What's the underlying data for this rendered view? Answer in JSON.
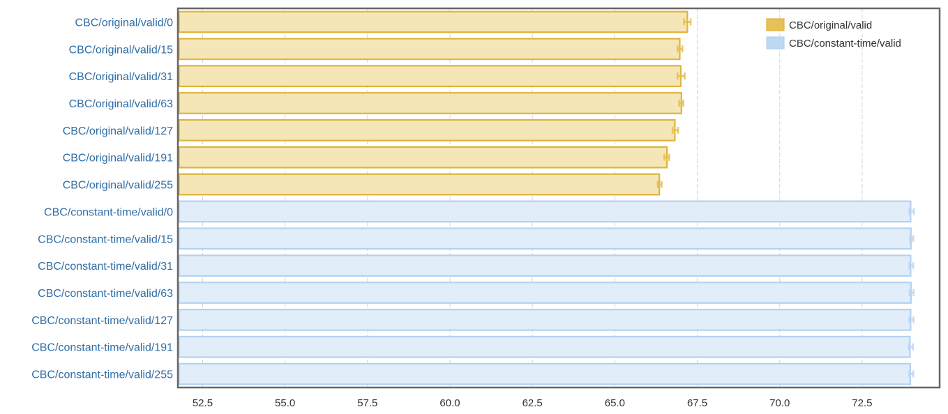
{
  "chart_data": {
    "type": "bar",
    "orientation": "horizontal",
    "categories": [
      "CBC/original/valid/0",
      "CBC/original/valid/15",
      "CBC/original/valid/31",
      "CBC/original/valid/63",
      "CBC/original/valid/127",
      "CBC/original/valid/191",
      "CBC/original/valid/255",
      "CBC/constant-time/valid/0",
      "CBC/constant-time/valid/15",
      "CBC/constant-time/valid/31",
      "CBC/constant-time/valid/63",
      "CBC/constant-time/valid/127",
      "CBC/constant-time/valid/191",
      "CBC/constant-time/valid/255"
    ],
    "series": [
      {
        "name": "CBC/original/valid",
        "color": "#e6c157",
        "fill": "#f5e6b8",
        "stroke": "#e0b43a",
        "values": [
          67.2,
          66.97,
          67.0,
          67.02,
          66.82,
          66.58,
          66.35,
          null,
          null,
          null,
          null,
          null,
          null,
          null
        ],
        "error_low": [
          67.1,
          66.9,
          66.9,
          66.95,
          66.75,
          66.5,
          66.3,
          null,
          null,
          null,
          null,
          null,
          null,
          null
        ],
        "error_high": [
          67.3,
          67.05,
          67.12,
          67.08,
          66.92,
          66.65,
          66.42,
          null,
          null,
          null,
          null,
          null,
          null,
          null
        ]
      },
      {
        "name": "CBC/constant-time/valid",
        "color": "#bcd8f3",
        "fill": "#e1edf9",
        "stroke": "#b4d2f0",
        "values": [
          null,
          null,
          null,
          null,
          null,
          null,
          null,
          73.97,
          73.98,
          73.97,
          73.98,
          73.97,
          73.95,
          73.96
        ],
        "error_low": [
          null,
          null,
          null,
          null,
          null,
          null,
          null,
          73.93,
          73.95,
          73.93,
          73.94,
          73.93,
          73.91,
          73.93
        ],
        "error_high": [
          null,
          null,
          null,
          null,
          null,
          null,
          null,
          74.07,
          74.05,
          74.05,
          74.06,
          74.06,
          74.04,
          74.05
        ]
      }
    ],
    "x_ticks": [
      "52.5",
      "55.0",
      "57.5",
      "60.0",
      "62.5",
      "65.0",
      "67.5",
      "70.0",
      "72.5"
    ],
    "xlim": [
      51.75,
      74.85
    ],
    "grid": true,
    "legend_position": "top-right",
    "title": "",
    "xlabel": "",
    "ylabel": ""
  }
}
